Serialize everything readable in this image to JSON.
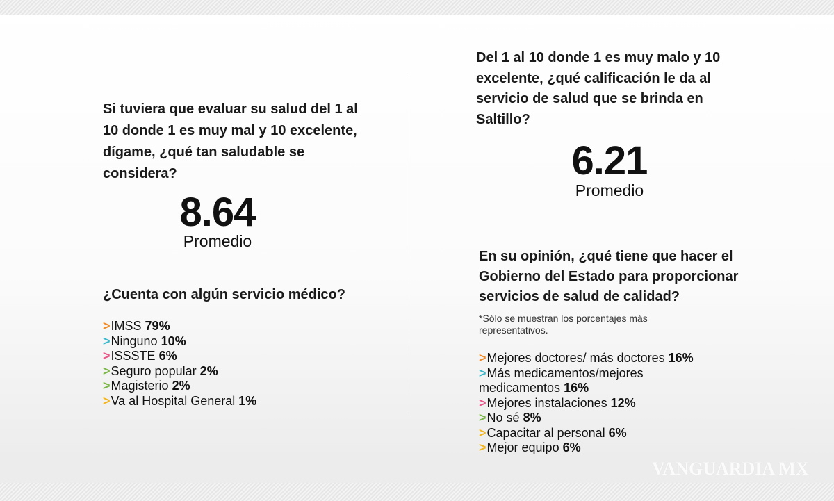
{
  "left": {
    "question": "Si tuviera que evaluar su salud del 1 al 10 donde 1 es muy mal y 10 excelente, dígame, ¿qué tan saludable se considera?",
    "value": "8.64",
    "value_label": "Promedio",
    "question2": "¿Cuenta con algún servicio médico?",
    "items": [
      {
        "label": "IMSS",
        "pct": "79%",
        "color": "#f08a24"
      },
      {
        "label": "Ninguno",
        "pct": "10%",
        "color": "#3bb8c9"
      },
      {
        "label": "ISSSTE",
        "pct": "6%",
        "color": "#e8568a"
      },
      {
        "label": "Seguro popular",
        "pct": "2%",
        "color": "#7ab648"
      },
      {
        "label": "Magisterio",
        "pct": "2%",
        "color": "#7ab648"
      },
      {
        "label": "Va al Hospital General",
        "pct": "1%",
        "color": "#f2b51f"
      }
    ]
  },
  "right": {
    "question": "Del 1 al 10 donde 1 es muy malo y 10 excelente, ¿qué calificación le da al servicio de salud que se brinda en Saltillo?",
    "value": "6.21",
    "value_label": "Promedio",
    "question2": "En su opinión, ¿qué tiene que hacer el Gobierno del Estado para proporcionar servicios de salud de calidad?",
    "note": "*Sólo se muestran los porcentajes más representativos.",
    "items": [
      {
        "label": "Mejores doctores/ más doctores",
        "pct": "16%",
        "color": "#f08a24"
      },
      {
        "label": "Más medicamentos/mejores medicamentos",
        "pct": "16%",
        "color": "#3bb8c9"
      },
      {
        "label": "Mejores instalaciones",
        "pct": "12%",
        "color": "#e8568a"
      },
      {
        "label": "No sé",
        "pct": "8%",
        "color": "#7ab648"
      },
      {
        "label": "Capacitar al personal",
        "pct": "6%",
        "color": "#f2b51f"
      },
      {
        "label": "Mejor equipo",
        "pct": "6%",
        "color": "#f2b51f"
      }
    ]
  },
  "arrow_glyph": ">",
  "watermark": "VANGUARDIA MX"
}
